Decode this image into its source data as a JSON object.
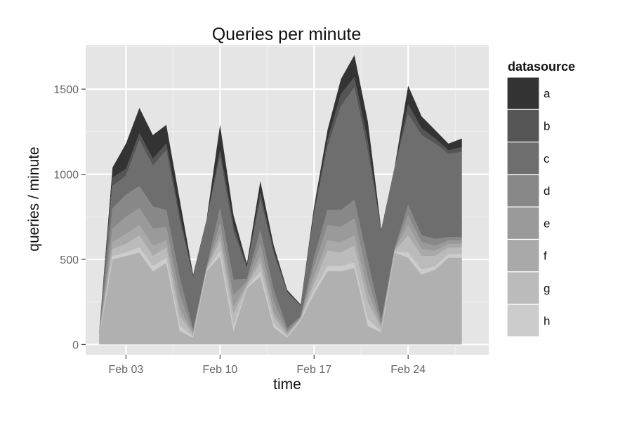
{
  "chart_data": {
    "type": "area",
    "stacked": true,
    "title": "Queries per minute",
    "xlabel": "time",
    "ylabel": "queries / minute",
    "x_axis_type": "date",
    "x": [
      "2014-02-01",
      "2014-02-02",
      "2014-02-03",
      "2014-02-04",
      "2014-02-05",
      "2014-02-06",
      "2014-02-07",
      "2014-02-08",
      "2014-02-09",
      "2014-02-10",
      "2014-02-11",
      "2014-02-12",
      "2014-02-13",
      "2014-02-14",
      "2014-02-15",
      "2014-02-16",
      "2014-02-17",
      "2014-02-18",
      "2014-02-19",
      "2014-02-20",
      "2014-02-21",
      "2014-02-22",
      "2014-02-23",
      "2014-02-24",
      "2014-02-25",
      "2014-02-26",
      "2014-02-27",
      "2014-02-28"
    ],
    "xlim": [
      "2014-01-31",
      "2014-03-02"
    ],
    "x_ticks": [
      {
        "value": "2014-02-03",
        "label": "Feb 03"
      },
      {
        "value": "2014-02-10",
        "label": "Feb 10"
      },
      {
        "value": "2014-02-17",
        "label": "Feb 17"
      },
      {
        "value": "2014-02-24",
        "label": "Feb 24"
      }
    ],
    "ylim": [
      -60,
      1760
    ],
    "y_ticks": [
      0,
      500,
      1000,
      1500
    ],
    "grid": true,
    "legend": {
      "title": "datasource",
      "position": "right"
    },
    "series": [
      {
        "name": "a",
        "color": "#333333",
        "values": [
          0,
          60,
          150,
          150,
          140,
          110,
          90,
          10,
          5,
          150,
          60,
          20,
          70,
          30,
          10,
          5,
          30,
          60,
          90,
          130,
          120,
          10,
          5,
          110,
          70,
          50,
          40,
          50
        ]
      },
      {
        "name": "b",
        "color": "#555555",
        "values": [
          0,
          50,
          40,
          40,
          40,
          40,
          40,
          10,
          5,
          40,
          40,
          10,
          40,
          20,
          5,
          5,
          20,
          40,
          70,
          60,
          60,
          10,
          5,
          60,
          40,
          30,
          20,
          30
        ]
      },
      {
        "name": "c",
        "color": "#6e6e6e",
        "values": [
          10,
          130,
          110,
          270,
          240,
          350,
          330,
          300,
          270,
          300,
          280,
          60,
          180,
          210,
          210,
          60,
          250,
          370,
          610,
          660,
          640,
          510,
          470,
          530,
          590,
          560,
          490,
          500
        ]
      },
      {
        "name": "d",
        "color": "#888888",
        "values": [
          5,
          120,
          130,
          130,
          130,
          100,
          100,
          15,
          5,
          90,
          90,
          15,
          80,
          70,
          20,
          5,
          50,
          90,
          100,
          110,
          100,
          30,
          5,
          60,
          40,
          40,
          20,
          20
        ]
      },
      {
        "name": "e",
        "color": "#9a9a9a",
        "values": [
          5,
          80,
          100,
          100,
          100,
          80,
          80,
          10,
          5,
          60,
          70,
          15,
          70,
          60,
          10,
          5,
          60,
          90,
          90,
          100,
          80,
          10,
          5,
          60,
          40,
          30,
          20,
          20
        ]
      },
      {
        "name": "f",
        "color": "#a9a9a9",
        "values": [
          5,
          40,
          60,
          60,
          60,
          40,
          40,
          10,
          5,
          40,
          40,
          10,
          40,
          30,
          10,
          5,
          40,
          60,
          60,
          60,
          60,
          10,
          5,
          60,
          40,
          30,
          20,
          20
        ]
      },
      {
        "name": "g",
        "color": "#bbbbbb",
        "values": [
          5,
          40,
          50,
          70,
          60,
          60,
          60,
          10,
          5,
          60,
          70,
          10,
          50,
          40,
          10,
          5,
          40,
          90,
          80,
          100,
          100,
          20,
          5,
          100,
          80,
          60,
          40,
          40
        ]
      },
      {
        "name": "h",
        "color": "#cccccc",
        "values": [
          0,
          20,
          20,
          30,
          30,
          30,
          30,
          5,
          5,
          30,
          30,
          5,
          30,
          20,
          5,
          5,
          20,
          30,
          30,
          30,
          40,
          5,
          5,
          30,
          30,
          20,
          20,
          20
        ]
      }
    ],
    "base_values": [
      40,
      500,
      520,
      540,
      430,
      480,
      80,
      40,
      430,
      520,
      80,
      330,
      400,
      100,
      40,
      140,
      300,
      430,
      430,
      450,
      110,
      70,
      540,
      510,
      410,
      440,
      510,
      510
    ]
  }
}
